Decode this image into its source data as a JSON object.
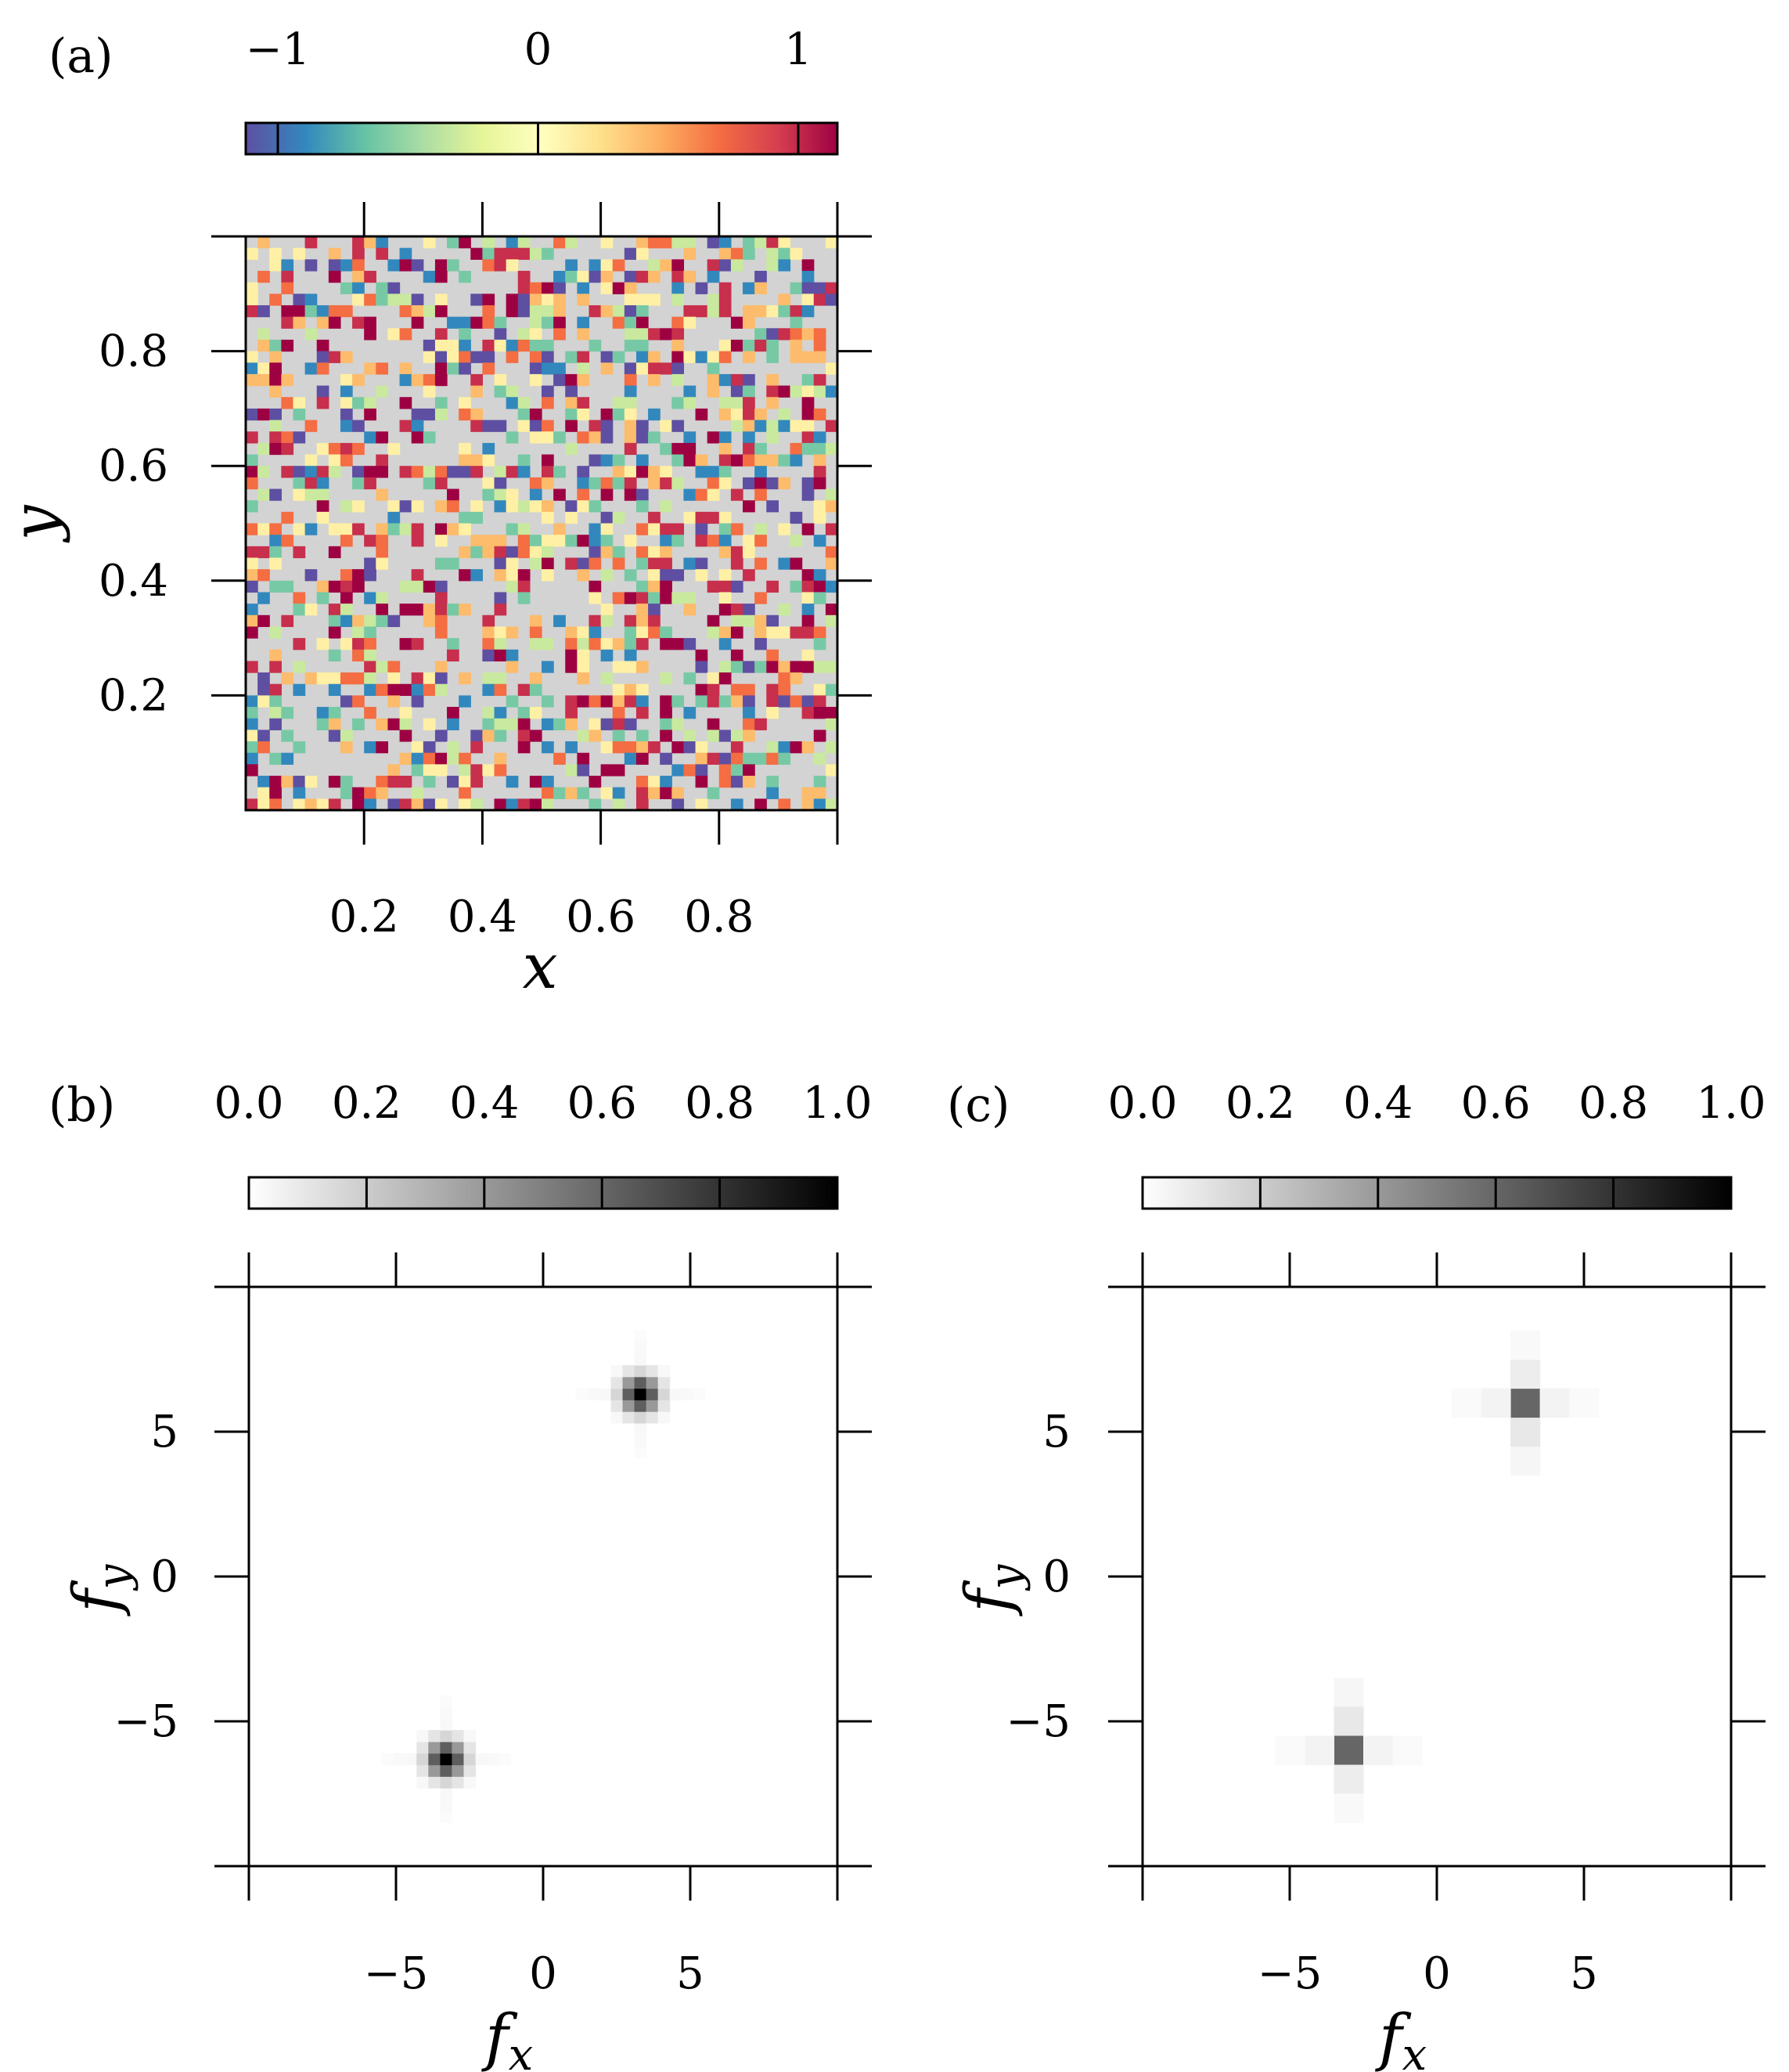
{
  "chart_data": [
    {
      "panel": "(a)",
      "type": "heatmap",
      "xlabel": "x",
      "ylabel": "y",
      "xlim": [
        0,
        1
      ],
      "ylim": [
        0,
        1
      ],
      "xticks": [
        0.2,
        0.4,
        0.6,
        0.8
      ],
      "xtick_labels": [
        "0.2",
        "0.4",
        "0.6",
        "0.8"
      ],
      "yticks": [
        0.2,
        0.4,
        0.6,
        0.8
      ],
      "ytick_labels": [
        "0.2",
        "0.4",
        "0.6",
        "0.8"
      ],
      "grid_cells": [
        50,
        50
      ],
      "colorbar": {
        "range": [
          -1,
          1
        ],
        "ticks": [
          -1,
          0,
          1
        ],
        "tick_labels": [
          "−1",
          "0",
          "1"
        ],
        "colormap": "Spectral_r",
        "colors": [
          "#5e4fa2",
          "#3288bd",
          "#66c2a5",
          "#abdda4",
          "#e6f598",
          "#ffffbf",
          "#fee08b",
          "#fdae61",
          "#f46d43",
          "#d53e4f",
          "#9e0142"
        ]
      },
      "background_color": "#d3d3d3",
      "description_values": "random sparse field with values in [-1, 1], about half of the cells nonzero"
    },
    {
      "panel": "(b)",
      "type": "heatmap",
      "xlabel": "f",
      "xlabel_sub": "x",
      "ylabel": "f",
      "ylabel_sub": "y",
      "xlim": [
        -10,
        10
      ],
      "ylim": [
        -10,
        10
      ],
      "xticks": [
        -5,
        0,
        5
      ],
      "xtick_labels": [
        "−5",
        "0",
        "5"
      ],
      "yticks": [
        -5,
        0,
        5
      ],
      "ytick_labels": [
        "−5",
        "0",
        "5"
      ],
      "colorbar": {
        "range": [
          0,
          1
        ],
        "ticks": [
          0,
          0.2,
          0.4,
          0.6,
          0.8,
          1.0
        ],
        "tick_labels": [
          "0.0",
          "0.2",
          "0.4",
          "0.6",
          "0.8",
          "1.0"
        ],
        "colormap": "Greys"
      },
      "peaks": [
        {
          "fx": 3.3,
          "fy": 6.3,
          "value": 1.0
        },
        {
          "fx": -3.3,
          "fy": -6.3,
          "value": 1.0
        }
      ],
      "resolution": "fine"
    },
    {
      "panel": "(c)",
      "type": "heatmap",
      "xlabel": "f",
      "xlabel_sub": "x",
      "ylabel": "f",
      "ylabel_sub": "y",
      "xlim": [
        -10,
        10
      ],
      "ylim": [
        -10,
        10
      ],
      "xticks": [
        -5,
        0,
        5
      ],
      "xtick_labels": [
        "−5",
        "0",
        "5"
      ],
      "yticks": [
        -5,
        0,
        5
      ],
      "ytick_labels": [
        "−5",
        "0",
        "5"
      ],
      "colorbar": {
        "range": [
          0,
          1
        ],
        "ticks": [
          0,
          0.2,
          0.4,
          0.6,
          0.8,
          1.0
        ],
        "tick_labels": [
          "0.0",
          "0.2",
          "0.4",
          "0.6",
          "0.8",
          "1.0"
        ],
        "colormap": "Greys"
      },
      "peaks": [
        {
          "fx": 3,
          "fy": 6,
          "value": 0.6
        },
        {
          "fx": -3,
          "fy": -6,
          "value": 0.6
        }
      ],
      "resolution": "coarse"
    }
  ]
}
